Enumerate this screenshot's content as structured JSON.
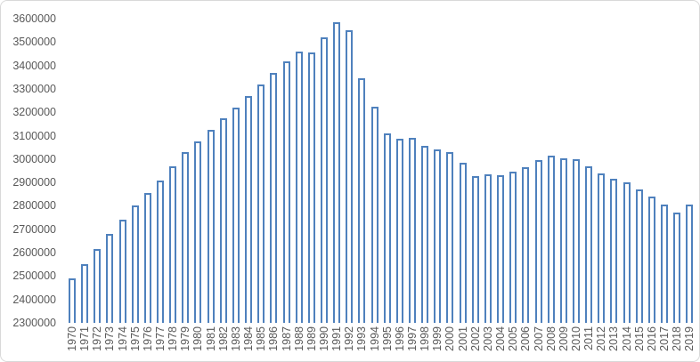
{
  "chart_data": {
    "type": "bar",
    "title": "",
    "xlabel": "",
    "ylabel": "",
    "legend": "none",
    "grid": false,
    "ylim": [
      2300000,
      3600000
    ],
    "ytick_step": 100000,
    "categories": [
      "1970",
      "1971",
      "1972",
      "1973",
      "1974",
      "1975",
      "1976",
      "1977",
      "1978",
      "1979",
      "1980",
      "1981",
      "1982",
      "1983",
      "1984",
      "1985",
      "1986",
      "1987",
      "1988",
      "1989",
      "1990",
      "1991",
      "1992",
      "1993",
      "1994",
      "1995",
      "1996",
      "1997",
      "1998",
      "1999",
      "2000",
      "2001",
      "2002",
      "2003",
      "2004",
      "2005",
      "2006",
      "2007",
      "2008",
      "2009",
      "2010",
      "2011",
      "2012",
      "2013",
      "2014",
      "2015",
      "2016",
      "2017",
      "2018",
      "2019"
    ],
    "values": [
      2490000,
      2550000,
      2615000,
      2680000,
      2740000,
      2800000,
      2855000,
      2910000,
      2970000,
      3030000,
      3075000,
      3125000,
      3175000,
      3220000,
      3270000,
      3320000,
      3370000,
      3418000,
      3460000,
      3455000,
      3520000,
      3585000,
      3550000,
      3345000,
      3225000,
      3110000,
      3085000,
      3090000,
      3055000,
      3040000,
      3028000,
      2985000,
      2928000,
      2935000,
      2930000,
      2945000,
      2965000,
      2995000,
      3015000,
      3005000,
      3000000,
      2970000,
      2940000,
      2915000,
      2900000,
      2870000,
      2840000,
      2805000,
      2770000,
      2805000
    ],
    "colors": {
      "bar_border": "#4F81BD",
      "bar_fill": "#FFFFFF",
      "axis_text": "#595959",
      "frame_border": "#D9D9D9",
      "background": "#FFFFFF"
    }
  }
}
